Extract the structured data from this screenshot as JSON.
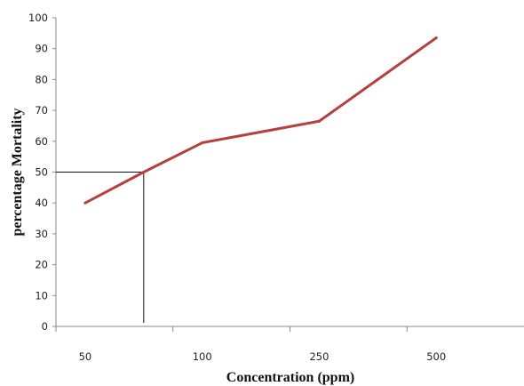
{
  "chart_data": {
    "type": "line",
    "title": "",
    "xlabel": "Concentration (ppm)",
    "ylabel": "percentage Mortality",
    "categories": [
      "50",
      "",
      "100",
      "",
      "250",
      "",
      "500"
    ],
    "x": [
      0,
      1,
      2,
      4,
      4,
      5,
      6
    ],
    "series": [
      {
        "color": "#b5403f",
        "x": [
          0,
          1,
          2,
          4,
          5,
          6
        ],
        "values": [
          40,
          50,
          59.5,
          66.5,
          80,
          93.5
        ]
      }
    ],
    "ylim": [
      0,
      100
    ],
    "yticks": [
      0,
      10,
      20,
      30,
      40,
      50,
      60,
      70,
      80,
      90,
      100
    ],
    "xticks_labels": [
      "50",
      "100",
      "250",
      "500"
    ],
    "reference_lines": {
      "y_value": 50,
      "x_position": 1
    },
    "grid": false,
    "legend": "none"
  }
}
